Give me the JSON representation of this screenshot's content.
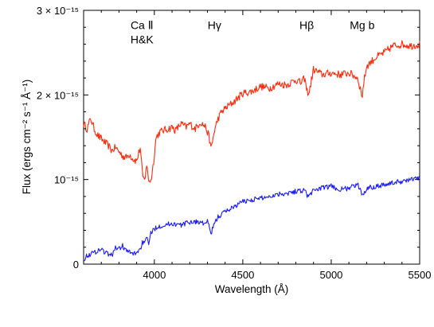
{
  "chart_data": {
    "type": "line",
    "xlabel": "Wavelength (Å)",
    "ylabel": "Flux (ergs cm⁻² s⁻¹ Å⁻¹)",
    "xlim": [
      3600,
      5500
    ],
    "ylim": [
      0,
      3
    ],
    "y_unit_note": "units of 10^-15",
    "grid": false,
    "x_ticks": [
      {
        "value": 4000,
        "label": "4000"
      },
      {
        "value": 4500,
        "label": "4500"
      },
      {
        "value": 5000,
        "label": "5000"
      },
      {
        "value": 5500,
        "label": "5500"
      }
    ],
    "y_ticks": [
      {
        "value": 0,
        "label": "0"
      },
      {
        "value": 1,
        "label": "10⁻¹⁵"
      },
      {
        "value": 2,
        "label": "2 × 10⁻¹⁵"
      },
      {
        "value": 3,
        "label": "3 × 10⁻¹⁵"
      }
    ],
    "annotations": [
      {
        "lines": [
          "Ca Ⅱ",
          "H&K"
        ],
        "x": 3930,
        "y": 2.78
      },
      {
        "lines": [
          "Hγ"
        ],
        "x": 4340,
        "y": 2.78
      },
      {
        "lines": [
          "Hβ"
        ],
        "x": 4861,
        "y": 2.78
      },
      {
        "lines": [
          "Mg b"
        ],
        "x": 5175,
        "y": 2.78
      }
    ],
    "series": [
      {
        "color": "#ff2a0a",
        "x": [
          3600,
          3620,
          3640,
          3660,
          3680,
          3700,
          3720,
          3740,
          3760,
          3780,
          3800,
          3820,
          3840,
          3860,
          3880,
          3900,
          3920,
          3933,
          3945,
          3955,
          3968,
          3980,
          3995,
          4010,
          4030,
          4050,
          4080,
          4101,
          4120,
          4150,
          4180,
          4200,
          4230,
          4260,
          4290,
          4310,
          4320,
          4340,
          4360,
          4380,
          4400,
          4450,
          4500,
          4550,
          4600,
          4650,
          4700,
          4750,
          4800,
          4830,
          4850,
          4861,
          4875,
          4890,
          4900,
          4950,
          5000,
          5050,
          5100,
          5150,
          5170,
          5175,
          5185,
          5200,
          5250,
          5300,
          5350,
          5400,
          5450,
          5500
        ],
        "y": [
          1.66,
          1.6,
          1.72,
          1.6,
          1.52,
          1.48,
          1.44,
          1.4,
          1.34,
          1.38,
          1.33,
          1.28,
          1.26,
          1.3,
          1.24,
          1.22,
          1.38,
          1.05,
          0.98,
          1.18,
          1.0,
          0.98,
          1.2,
          1.5,
          1.56,
          1.58,
          1.6,
          1.62,
          1.58,
          1.66,
          1.62,
          1.66,
          1.6,
          1.68,
          1.62,
          1.5,
          1.36,
          1.58,
          1.72,
          1.8,
          1.84,
          1.92,
          2.02,
          2.04,
          2.1,
          2.08,
          2.13,
          2.12,
          2.18,
          2.14,
          2.2,
          2.05,
          2.02,
          2.2,
          2.3,
          2.24,
          2.26,
          2.24,
          2.26,
          2.2,
          2.02,
          1.98,
          2.16,
          2.34,
          2.44,
          2.5,
          2.58,
          2.6,
          2.58,
          2.6
        ]
      },
      {
        "color": "#1a1aff",
        "x": [
          3600,
          3620,
          3640,
          3660,
          3680,
          3700,
          3720,
          3740,
          3760,
          3780,
          3800,
          3820,
          3840,
          3860,
          3880,
          3900,
          3920,
          3933,
          3945,
          3955,
          3968,
          3980,
          3995,
          4010,
          4050,
          4101,
          4150,
          4200,
          4250,
          4280,
          4300,
          4310,
          4320,
          4340,
          4360,
          4400,
          4450,
          4500,
          4550,
          4600,
          4650,
          4700,
          4750,
          4800,
          4850,
          4861,
          4875,
          4900,
          4950,
          5000,
          5050,
          5100,
          5150,
          5175,
          5185,
          5200,
          5250,
          5300,
          5350,
          5400,
          5450,
          5500
        ],
        "y": [
          0.06,
          0.1,
          0.12,
          0.14,
          0.16,
          0.18,
          0.14,
          0.12,
          0.1,
          0.2,
          0.18,
          0.22,
          0.16,
          0.14,
          0.12,
          0.14,
          0.18,
          0.26,
          0.24,
          0.3,
          0.26,
          0.36,
          0.4,
          0.44,
          0.46,
          0.48,
          0.46,
          0.5,
          0.5,
          0.48,
          0.5,
          0.44,
          0.36,
          0.48,
          0.56,
          0.62,
          0.68,
          0.74,
          0.76,
          0.78,
          0.8,
          0.83,
          0.84,
          0.86,
          0.88,
          0.82,
          0.8,
          0.88,
          0.9,
          0.92,
          0.88,
          0.9,
          0.94,
          0.82,
          0.84,
          0.9,
          0.92,
          0.94,
          0.96,
          0.98,
          1.0,
          1.02
        ]
      }
    ]
  }
}
